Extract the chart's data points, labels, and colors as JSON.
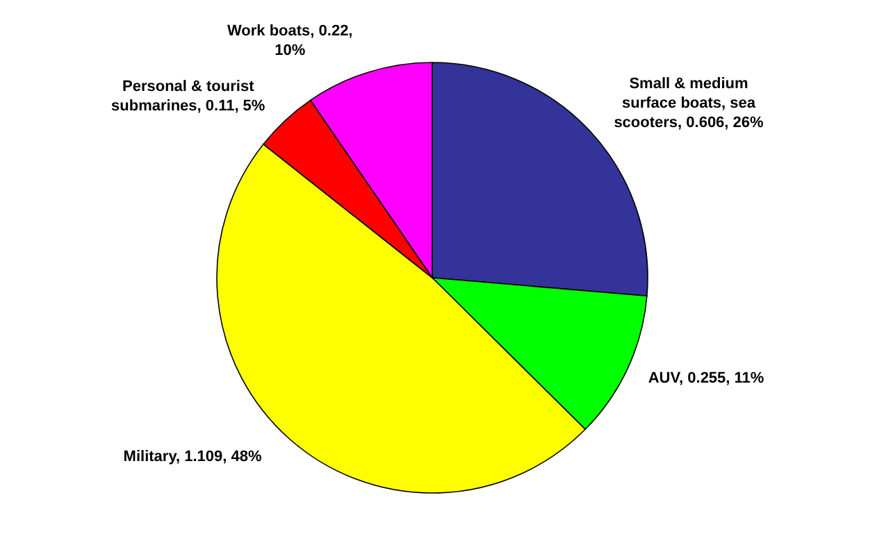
{
  "chart_data": {
    "type": "pie",
    "categories": [
      "Small & medium surface boats, sea scooters",
      "AUV",
      "Military",
      "Personal & tourist submarines",
      "Work boats"
    ],
    "values": [
      0.606,
      0.255,
      1.109,
      0.11,
      0.22
    ],
    "value_labels": [
      "0.606, 26%",
      "0.255, 11%",
      "1.109, 48%",
      "0.11, 5%",
      "0.22, 10%"
    ],
    "colors": [
      "#333399",
      "#00ff00",
      "#ffff00",
      "#ff0000",
      "#ff00ff"
    ],
    "legend": false
  }
}
